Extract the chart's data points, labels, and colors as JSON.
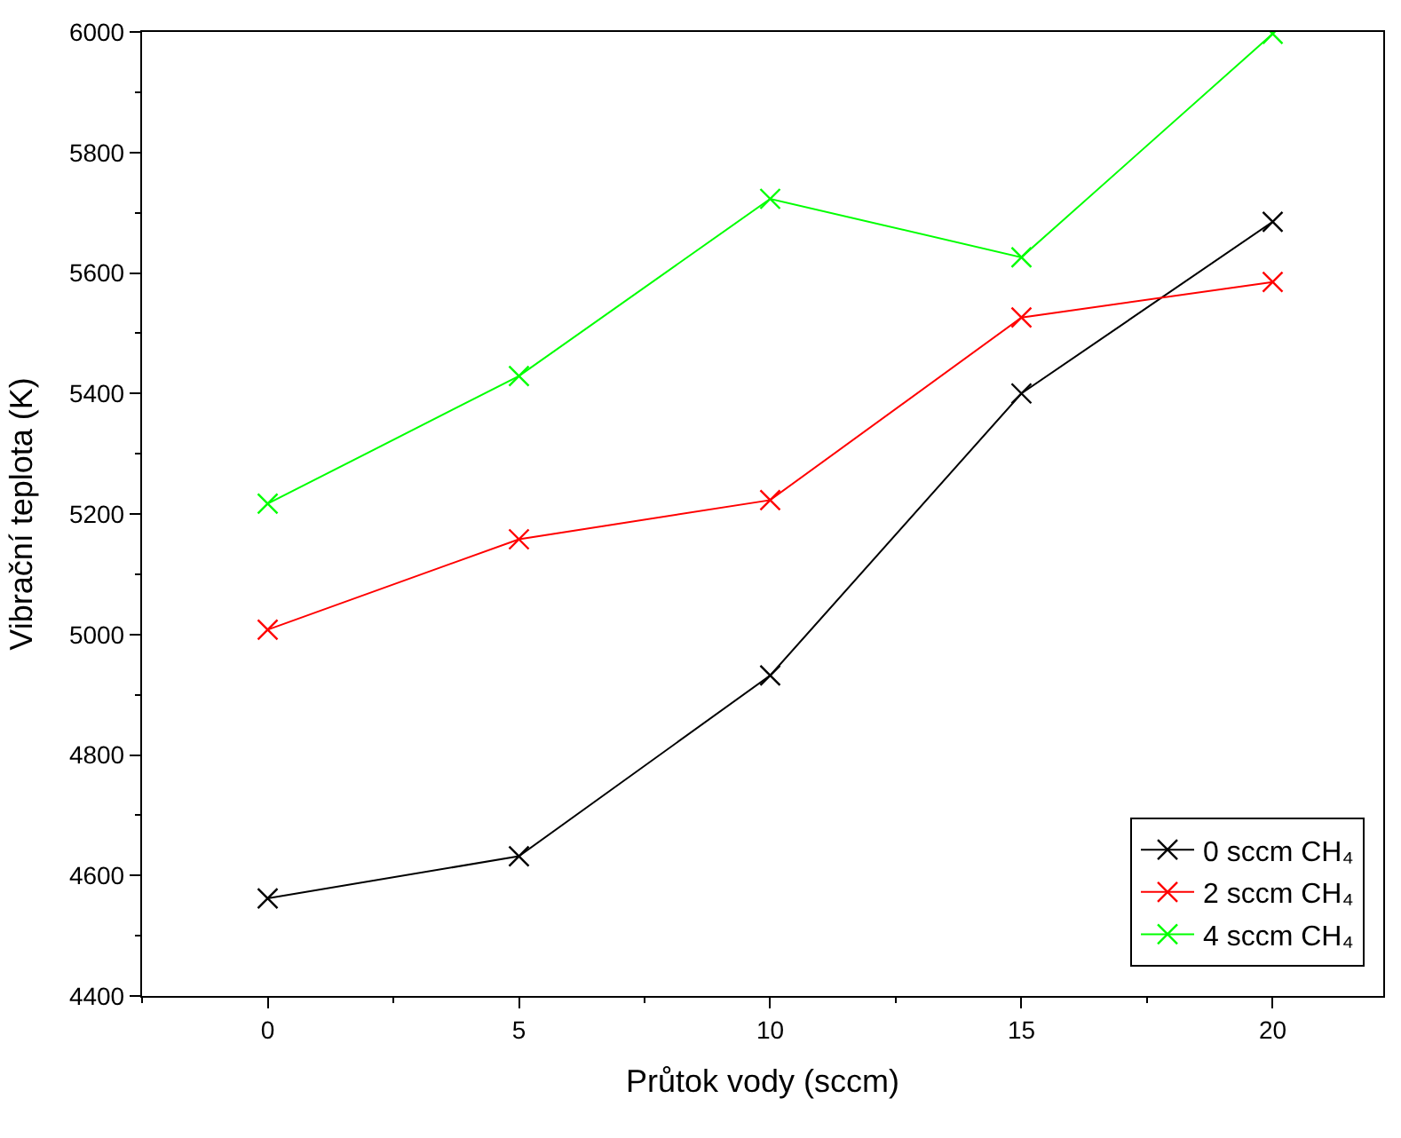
{
  "chart_data": {
    "type": "line",
    "xlabel": "Průtok vody (sccm)",
    "ylabel": "Vibrační teplota (K)",
    "x": [
      0,
      5,
      10,
      15,
      20
    ],
    "series": [
      {
        "name": "0 sccm CH₄",
        "color": "#000000",
        "values": [
          4562,
          4632,
          4932,
          5400,
          5685
        ]
      },
      {
        "name": "2 sccm CH₄",
        "color": "#ff0000",
        "values": [
          5008,
          5158,
          5223,
          5526,
          5585
        ]
      },
      {
        "name": "4 sccm CH₄",
        "color": "#00ff00",
        "values": [
          5217,
          5429,
          5723,
          5626,
          5997
        ]
      }
    ],
    "xlim": [
      -2.5,
      22.2
    ],
    "xticks": [
      0,
      5,
      10,
      15,
      20
    ],
    "ylim": [
      4400,
      6000
    ],
    "yticks": [
      4400,
      4600,
      4800,
      5000,
      5200,
      5400,
      5600,
      5800,
      6000
    ],
    "marker": "cross",
    "line_style": "solid",
    "legend": "bottom right"
  }
}
